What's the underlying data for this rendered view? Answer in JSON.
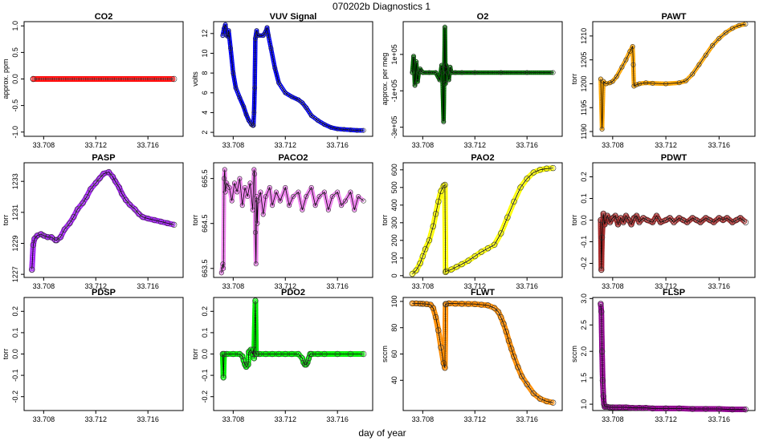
{
  "figure_title": "070202b    Diagnostics 1",
  "xlabel": "day of year",
  "chart_data": [
    {
      "type": "line",
      "title": "CO2",
      "ylabel": "approx. ppm",
      "color": "#ff0000",
      "xlim": [
        33.7065,
        33.7187
      ],
      "xticks": [
        33.708,
        33.712,
        33.716
      ],
      "ylim": [
        -1.08,
        1.08
      ],
      "yticks": [
        -1.0,
        -0.5,
        0.0,
        0.5,
        1.0
      ],
      "ytick_labels": [
        "-1.0",
        "-0.5",
        "0.0",
        "0.5",
        "1.0"
      ],
      "x": [
        33.7072,
        33.718
      ],
      "y": [
        0,
        0
      ],
      "marker_size": 3
    },
    {
      "type": "line",
      "title": "VUV Signal",
      "ylabel": "volts",
      "color": "#0000ee",
      "xlim": [
        33.7065,
        33.7187
      ],
      "xticks": [
        33.708,
        33.712,
        33.716
      ],
      "ylim": [
        1.6,
        13.2
      ],
      "yticks": [
        2,
        4,
        6,
        8,
        10,
        12
      ],
      "ytick_labels": [
        "2",
        "4",
        "6",
        "8",
        "10",
        "12"
      ],
      "x": [
        33.7072,
        33.7073,
        33.7074,
        33.7075,
        33.7076,
        33.70765,
        33.7078,
        33.708,
        33.7082,
        33.7085,
        33.7088,
        33.709,
        33.7092,
        33.7094,
        33.7095,
        33.70955,
        33.7096,
        33.70965,
        33.7097,
        33.7098,
        33.70985,
        33.7099,
        33.7103,
        33.7105,
        33.7106,
        33.7107,
        33.7109,
        33.7112,
        33.7115,
        33.712,
        33.7125,
        33.713,
        33.7133,
        33.7136,
        33.714,
        33.7145,
        33.715,
        33.7155,
        33.716,
        33.7165,
        33.717,
        33.7175,
        33.718
      ],
      "y": [
        11.8,
        12.5,
        12.9,
        11.8,
        11.7,
        12.3,
        10.5,
        8.0,
        6.5,
        5.5,
        4.6,
        3.8,
        3.2,
        2.8,
        2.7,
        2.7,
        4.0,
        6.5,
        11.5,
        12.3,
        11.8,
        11.8,
        11.8,
        12.2,
        12.6,
        11.8,
        10.5,
        8.5,
        7.0,
        6.0,
        5.6,
        5.3,
        5.0,
        4.5,
        3.7,
        3.2,
        2.8,
        2.5,
        2.35,
        2.3,
        2.25,
        2.2,
        2.2
      ],
      "marker_size": 2.3
    },
    {
      "type": "line",
      "title": "O2",
      "ylabel": "approx. per meg",
      "color": "#006400",
      "xlim": [
        33.7065,
        33.7187
      ],
      "xticks": [
        33.708,
        33.712,
        33.716
      ],
      "ylim": [
        -350000.0,
        280000.0
      ],
      "yticks": [
        -300000.0,
        -100000.0,
        100000.0
      ],
      "ytick_labels": [
        "-3e+05",
        "-1e+05",
        "1e+05"
      ],
      "x": [
        33.7072,
        33.7073,
        33.7074,
        33.7075,
        33.7076,
        33.7077,
        33.7078,
        33.708,
        33.7085,
        33.709,
        33.7093,
        33.70945,
        33.7095,
        33.7096,
        33.7097,
        33.70975,
        33.7098,
        33.7099,
        33.71,
        33.7101,
        33.7102,
        33.7105,
        33.711,
        33.712,
        33.714,
        33.716,
        33.718
      ],
      "y": [
        0,
        90000,
        -70000,
        60000,
        -50000,
        0,
        20000,
        0,
        0,
        0,
        -40000,
        40000,
        0,
        -270000,
        250000,
        -60000,
        40000,
        0,
        -40000,
        30000,
        0,
        0,
        0,
        0,
        0,
        0,
        0
      ],
      "marker_size": 2.3
    },
    {
      "type": "line",
      "title": "PAWT",
      "ylabel": "torr",
      "color": "#ffa500",
      "xlim": [
        33.7065,
        33.7187
      ],
      "xticks": [
        33.708,
        33.712,
        33.716
      ],
      "ylim": [
        1189,
        1213
      ],
      "yticks": [
        1190,
        1195,
        1200,
        1205,
        1210
      ],
      "ytick_labels": [
        "1190",
        "1195",
        "1200",
        "1205",
        "1210"
      ],
      "x": [
        33.7071,
        33.7072,
        33.7073,
        33.7075,
        33.7078,
        33.708,
        33.7083,
        33.7087,
        33.709,
        33.7093,
        33.7095,
        33.70955,
        33.7096,
        33.7098,
        33.71,
        33.7105,
        33.711,
        33.712,
        33.713,
        33.7135,
        33.714,
        33.7145,
        33.715,
        33.7155,
        33.716,
        33.7165,
        33.717,
        33.7175,
        33.718
      ],
      "y": [
        1201,
        1190.5,
        1200.5,
        1200,
        1200.2,
        1200.5,
        1201.5,
        1203.5,
        1205,
        1206.8,
        1207.8,
        1204,
        1199.5,
        1199.8,
        1200,
        1200.2,
        1200.1,
        1200,
        1200.2,
        1200.6,
        1202,
        1204,
        1206,
        1208,
        1209.5,
        1210.7,
        1211.6,
        1212.2,
        1212.5
      ],
      "marker_size": 2.3
    },
    {
      "type": "line",
      "title": "PASP",
      "ylabel": "torr",
      "color": "#a020f0",
      "xlim": [
        33.7065,
        33.7187
      ],
      "xticks": [
        33.708,
        33.712,
        33.716
      ],
      "ylim": [
        1226.8,
        1234.2
      ],
      "yticks": [
        1227,
        1229,
        1231,
        1233
      ],
      "ytick_labels": [
        "1227",
        "1229",
        "1231",
        "1233"
      ],
      "x": [
        33.7071,
        33.7072,
        33.7073,
        33.7075,
        33.7078,
        33.708,
        33.7083,
        33.7086,
        33.7089,
        33.709,
        33.7093,
        33.7096,
        33.71,
        33.7103,
        33.7106,
        33.711,
        33.7113,
        33.7116,
        33.712,
        33.7123,
        33.7126,
        33.713,
        33.7133,
        33.7135,
        33.7138,
        33.714,
        33.7143,
        33.7146,
        33.715,
        33.7153,
        33.7156,
        33.716,
        33.7165,
        33.717,
        33.7175,
        33.718
      ],
      "y": [
        1227.3,
        1228.9,
        1229.3,
        1229.5,
        1229.6,
        1229.5,
        1229.4,
        1229.4,
        1229.2,
        1229.2,
        1229.4,
        1229.9,
        1230.3,
        1230.7,
        1231.2,
        1231.6,
        1232.0,
        1232.5,
        1232.9,
        1233.2,
        1233.5,
        1233.6,
        1233.3,
        1233.0,
        1232.6,
        1232.2,
        1231.8,
        1231.5,
        1231.2,
        1230.9,
        1230.7,
        1230.6,
        1230.5,
        1230.4,
        1230.3,
        1230.2
      ],
      "marker_size": 3
    },
    {
      "type": "line",
      "title": "PACO2",
      "ylabel": "torr",
      "color": "#ee82ee",
      "xlim": [
        33.7065,
        33.7187
      ],
      "xticks": [
        33.708,
        33.712,
        33.716
      ],
      "ylim": [
        663.3,
        665.85
      ],
      "yticks": [
        663.5,
        664.5,
        665.5
      ],
      "ytick_labels": [
        "663.5",
        "664.5",
        "665.5"
      ],
      "x": [
        33.7071,
        33.7072,
        33.70725,
        33.7073,
        33.70735,
        33.7074,
        33.7075,
        33.7077,
        33.7079,
        33.7081,
        33.7083,
        33.7085,
        33.7087,
        33.7089,
        33.7091,
        33.7093,
        33.7095,
        33.7096,
        33.70965,
        33.7097,
        33.70975,
        33.7098,
        33.70985,
        33.7099,
        33.7101,
        33.7103,
        33.7105,
        33.7108,
        33.711,
        33.7113,
        33.7116,
        33.712,
        33.7123,
        33.7126,
        33.713,
        33.7133,
        33.7136,
        33.714,
        33.7143,
        33.7146,
        33.715,
        33.7153,
        33.7156,
        33.716,
        33.7163,
        33.7166,
        33.717,
        33.7173,
        33.7176,
        33.718
      ],
      "y": [
        663.4,
        663.6,
        663.5,
        665.5,
        665.7,
        665.2,
        665.4,
        665.3,
        665.0,
        665.4,
        665.2,
        665.5,
        664.9,
        665.3,
        665.1,
        665.4,
        664.8,
        665.7,
        665.6,
        664.3,
        663.6,
        665.1,
        664.5,
        665.0,
        665.2,
        664.7,
        665.1,
        665.3,
        664.9,
        665.2,
        665.0,
        665.3,
        664.9,
        665.1,
        665.2,
        664.8,
        665.1,
        665.3,
        664.9,
        665.1,
        665.2,
        664.8,
        665.1,
        665.2,
        664.9,
        665.0,
        665.2,
        664.8,
        665.1,
        665.0
      ],
      "marker_size": 2.3
    },
    {
      "type": "line",
      "title": "PAO2",
      "ylabel": "torr",
      "color": "#ffff00",
      "xlim": [
        33.7065,
        33.7187
      ],
      "xticks": [
        33.708,
        33.712,
        33.716
      ],
      "ylim": [
        -10,
        640
      ],
      "yticks": [
        0,
        100,
        200,
        300,
        400,
        500,
        600
      ],
      "ytick_labels": [
        "0",
        "100",
        "200",
        "300",
        "400",
        "500",
        "600"
      ],
      "x": [
        33.7072,
        33.7075,
        33.7078,
        33.708,
        33.7082,
        33.7085,
        33.7088,
        33.709,
        33.7092,
        33.7094,
        33.7096,
        33.7097,
        33.70975,
        33.7098,
        33.7102,
        33.7106,
        33.711,
        33.7115,
        33.712,
        33.7125,
        33.713,
        33.7135,
        33.714,
        33.7145,
        33.715,
        33.7155,
        33.716,
        33.7165,
        33.717,
        33.7175,
        33.718
      ],
      "y": [
        10,
        30,
        70,
        110,
        150,
        200,
        280,
        350,
        420,
        480,
        510,
        515,
        20,
        25,
        35,
        50,
        65,
        85,
        110,
        135,
        155,
        175,
        240,
        330,
        420,
        500,
        550,
        585,
        600,
        607,
        610
      ],
      "marker_size": 3
    },
    {
      "type": "line",
      "title": "PDWT",
      "ylabel": "torr",
      "color": "#a52a2a",
      "xlim": [
        33.7065,
        33.7187
      ],
      "xticks": [
        33.708,
        33.712,
        33.716
      ],
      "ylim": [
        -0.265,
        0.265
      ],
      "yticks": [
        -0.2,
        -0.1,
        0.0,
        0.1,
        0.2
      ],
      "ytick_labels": [
        "-0.2",
        "-0.1",
        "0.0",
        "0.1",
        "0.2"
      ],
      "x": [
        33.7071,
        33.70715,
        33.7072,
        33.7073,
        33.7074,
        33.7076,
        33.7078,
        33.708,
        33.7082,
        33.7084,
        33.7086,
        33.7088,
        33.709,
        33.7092,
        33.7094,
        33.7096,
        33.7098,
        33.71,
        33.7103,
        33.7106,
        33.711,
        33.7113,
        33.7116,
        33.712,
        33.7123,
        33.7126,
        33.713,
        33.7133,
        33.7136,
        33.714,
        33.7143,
        33.7146,
        33.715,
        33.7153,
        33.7156,
        33.716,
        33.7163,
        33.7166,
        33.717,
        33.7173,
        33.7176,
        33.718
      ],
      "y": [
        0.0,
        -0.23,
        -0.08,
        0.03,
        -0.02,
        0.02,
        -0.01,
        0.01,
        0.02,
        -0.02,
        0.01,
        -0.01,
        0.02,
        0.0,
        -0.02,
        0.01,
        0.02,
        -0.01,
        0.01,
        0.0,
        -0.01,
        0.02,
        -0.01,
        0.0,
        0.01,
        -0.01,
        0.01,
        0.0,
        -0.01,
        0.01,
        0.0,
        -0.01,
        0.01,
        0.0,
        -0.01,
        0.01,
        0.0,
        0.01,
        -0.01,
        0.0,
        0.01,
        -0.01
      ],
      "marker_size": 3
    },
    {
      "type": "line",
      "title": "PDSP",
      "ylabel": "torr",
      "color": "#000000",
      "xlim": [
        33.7065,
        33.7187
      ],
      "xticks": [
        33.708,
        33.712,
        33.716
      ],
      "ylim": [
        -0.265,
        0.265
      ],
      "yticks": [
        -0.2,
        -0.1,
        0.0,
        0.1,
        0.2
      ],
      "ytick_labels": [
        "-0.2",
        "-0.1",
        "0.0",
        "0.1",
        "0.2"
      ],
      "x": [],
      "y": [],
      "marker_size": 0
    },
    {
      "type": "line",
      "title": "PDO2",
      "ylabel": "torr",
      "color": "#00ee00",
      "xlim": [
        33.7065,
        33.7187
      ],
      "xticks": [
        33.708,
        33.712,
        33.716
      ],
      "ylim": [
        -0.265,
        0.265
      ],
      "yticks": [
        -0.2,
        -0.1,
        0.0,
        0.1,
        0.2
      ],
      "ytick_labels": [
        "-0.2",
        "-0.1",
        "0.0",
        "0.1",
        "0.2"
      ],
      "x": [
        33.7072,
        33.70725,
        33.7073,
        33.7075,
        33.708,
        33.7085,
        33.7087,
        33.7088,
        33.7089,
        33.709,
        33.70915,
        33.7092,
        33.70935,
        33.7095,
        33.70955,
        33.7096,
        33.7097,
        33.70975,
        33.7098,
        33.71,
        33.7105,
        33.711,
        33.7115,
        33.712,
        33.7125,
        33.713,
        33.7133,
        33.7134,
        33.7135,
        33.7136,
        33.7137,
        33.7138,
        33.7139,
        33.714,
        33.7145,
        33.715,
        33.716,
        33.717,
        33.718
      ],
      "y": [
        0.0,
        -0.11,
        0.0,
        0.0,
        0.0,
        0.0,
        -0.01,
        -0.03,
        -0.05,
        -0.06,
        -0.05,
        0.01,
        0.02,
        0.0,
        0.02,
        -0.02,
        0.25,
        0.0,
        0.0,
        0.0,
        0.0,
        0.0,
        0.0,
        0.0,
        0.0,
        0.0,
        -0.02,
        -0.04,
        -0.05,
        -0.05,
        -0.04,
        -0.02,
        0.0,
        0.0,
        0.0,
        0.0,
        0.0,
        0.0,
        0.0
      ],
      "marker_size": 3
    },
    {
      "type": "line",
      "title": "FLWT",
      "ylabel": "sccm",
      "color": "#ff8c00",
      "xlim": [
        33.7065,
        33.7187
      ],
      "xticks": [
        33.708,
        33.712,
        33.716
      ],
      "ylim": [
        17,
        103
      ],
      "yticks": [
        40,
        60,
        80,
        100
      ],
      "ytick_labels": [
        "40",
        "60",
        "80",
        "100"
      ],
      "x": [
        33.7072,
        33.7075,
        33.7078,
        33.708,
        33.7083,
        33.7086,
        33.7088,
        33.709,
        33.7092,
        33.7094,
        33.7096,
        33.7097,
        33.70975,
        33.7098,
        33.71,
        33.7105,
        33.711,
        33.7115,
        33.712,
        33.7125,
        33.713,
        33.7135,
        33.7138,
        33.714,
        33.7142,
        33.7144,
        33.7146,
        33.7148,
        33.715,
        33.7153,
        33.7156,
        33.716,
        33.7165,
        33.717,
        33.7175,
        33.718
      ],
      "y": [
        98.5,
        98.5,
        98.3,
        98.2,
        98,
        97.5,
        95,
        88,
        78,
        65,
        53,
        49.5,
        98,
        98,
        98.5,
        98.3,
        98.2,
        98.1,
        98,
        97.5,
        97,
        95,
        92,
        88,
        83,
        77,
        70,
        64,
        58,
        50,
        43,
        37,
        30,
        26,
        24,
        23
      ],
      "marker_size": 3
    },
    {
      "type": "line",
      "title": "FLSP",
      "ylabel": "sccm",
      "color": "#8b008b",
      "xlim": [
        33.7065,
        33.7187
      ],
      "xticks": [
        33.708,
        33.712,
        33.716
      ],
      "ylim": [
        0.88,
        3.02
      ],
      "yticks": [
        1.0,
        1.5,
        2.0,
        2.5,
        3.0
      ],
      "ytick_labels": [
        "1.0",
        "1.5",
        "2.0",
        "2.5",
        "3.0"
      ],
      "x": [
        33.7071,
        33.70715,
        33.7072,
        33.70725,
        33.7073,
        33.70735,
        33.7074,
        33.7076,
        33.7078,
        33.708,
        33.7085,
        33.709,
        33.7095,
        33.71,
        33.7105,
        33.711,
        33.712,
        33.713,
        33.714,
        33.715,
        33.716,
        33.717,
        33.718
      ],
      "y": [
        2.9,
        2.75,
        2.0,
        1.45,
        1.15,
        1.0,
        0.95,
        0.95,
        0.94,
        0.94,
        0.94,
        0.94,
        0.93,
        0.93,
        0.93,
        0.92,
        0.92,
        0.92,
        0.91,
        0.91,
        0.91,
        0.9,
        0.9
      ],
      "marker_size": 3
    }
  ]
}
